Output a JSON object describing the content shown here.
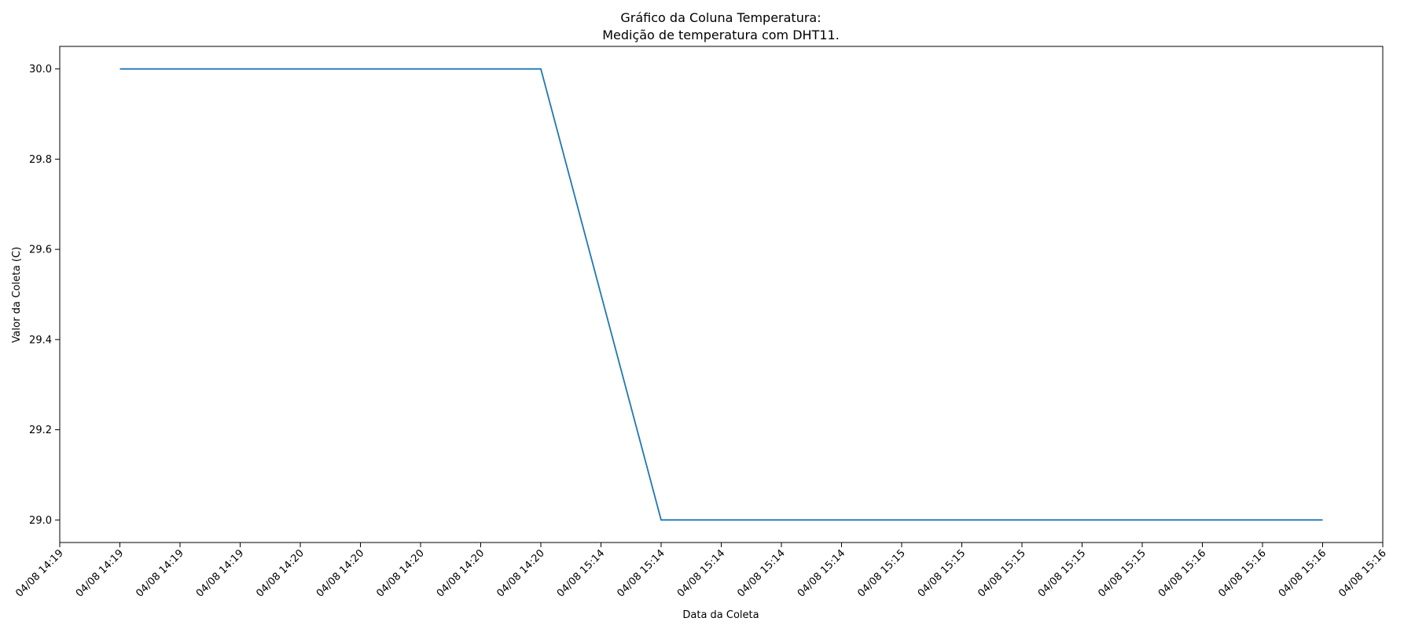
{
  "chart_data": {
    "type": "line",
    "title": "Gráfico da Coluna Temperatura:",
    "subtitle": "Medição de temperatura com DHT11.",
    "xlabel": "Data da Coleta",
    "ylabel": "Valor da Coleta (C)",
    "x_tick_labels": [
      "04/08 14:19",
      "04/08 14:19",
      "04/08 14:19",
      "04/08 14:19",
      "04/08 14:20",
      "04/08 14:20",
      "04/08 14:20",
      "04/08 14:20",
      "04/08 14:20",
      "04/08 15:14",
      "04/08 15:14",
      "04/08 15:14",
      "04/08 15:14",
      "04/08 15:14",
      "04/08 15:15",
      "04/08 15:15",
      "04/08 15:15",
      "04/08 15:15",
      "04/08 15:15",
      "04/08 15:16",
      "04/08 15:16",
      "04/08 15:16",
      "04/08 15:16"
    ],
    "y_ticks": [
      29.0,
      29.2,
      29.4,
      29.6,
      29.8,
      30.0
    ],
    "ylim": [
      28.95,
      30.05
    ],
    "grid": false,
    "color": "#1f77b4",
    "series": [
      {
        "points": [
          {
            "x": "04/08 14:19",
            "y": 30.0
          },
          {
            "x": "04/08 14:20",
            "y": 30.0
          },
          {
            "x": "04/08 15:14",
            "y": 29.0
          },
          {
            "x": "04/08 15:16",
            "y": 29.0
          }
        ]
      }
    ]
  }
}
